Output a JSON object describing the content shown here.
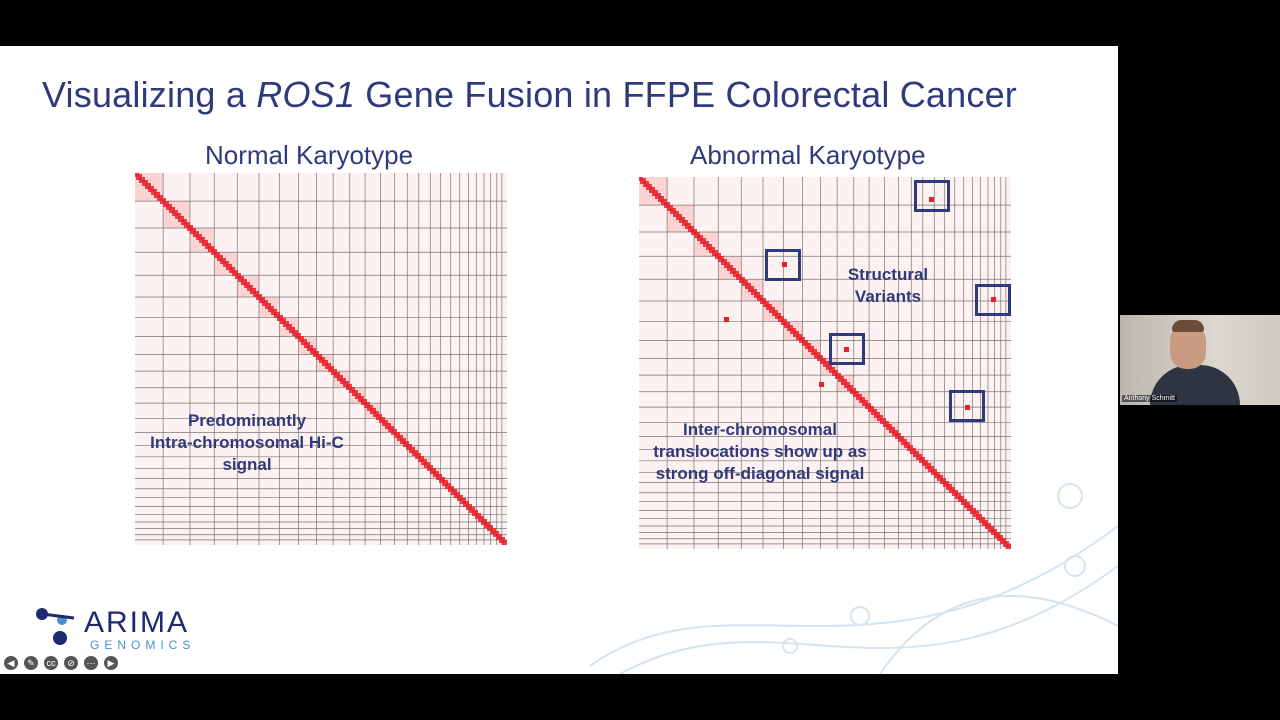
{
  "slide": {
    "title_pre": "Visualizing a ",
    "title_italic": "ROS1",
    "title_post": " Gene Fusion in FFPE Colorectal Cancer",
    "left_panel": {
      "title": "Normal Karyotype",
      "annotation": [
        "Predominantly",
        "Intra-chromosomal Hi-C",
        "signal"
      ]
    },
    "right_panel": {
      "title": "Abnormal Karyotype",
      "annotation_sv": [
        "Structural",
        "Variants"
      ],
      "annotation_trans": [
        "Inter-chromosomal",
        "translocations show up as",
        "strong off-diagonal signal"
      ]
    },
    "logo": {
      "word": "ARIMA",
      "sub": "GENOMICS"
    }
  },
  "controls": [
    "prev",
    "pen",
    "captions",
    "hide",
    "more",
    "next"
  ],
  "webcam": {
    "name": "Anthony Schmitt"
  },
  "colors": {
    "title": "#2f3a7a",
    "hic": "#e8202a",
    "logo": "#1e2a6e"
  }
}
